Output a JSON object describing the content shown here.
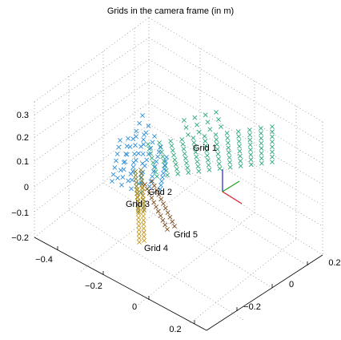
{
  "chart_data": {
    "type": "scatter",
    "title": "Grids in the camera frame (in m)",
    "projection": "3d",
    "grid": true,
    "axes": {
      "x": {
        "ticks": [
          "−0.4",
          "−0.2",
          "0",
          "0.2"
        ],
        "values": [
          -0.4,
          -0.2,
          0,
          0.2
        ]
      },
      "y": {
        "ticks": [
          "−0.2",
          "0",
          "0.2"
        ],
        "values": [
          -0.2,
          0,
          0.2
        ]
      },
      "z": {
        "ticks": [
          "−0.2",
          "−0.1",
          "0",
          "0.1",
          "0.2",
          "0.3"
        ],
        "values": [
          -0.2,
          -0.1,
          0,
          0.1,
          0.2,
          0.3
        ]
      }
    },
    "series": [
      {
        "name": "Grid 1",
        "color": "#2ca87a",
        "marker": "x"
      },
      {
        "name": "Grid 2",
        "color": "#2f8fd6",
        "marker": "x"
      },
      {
        "name": "Grid 3",
        "color": "#7a7a30",
        "marker": "x"
      },
      {
        "name": "Grid 4",
        "color": "#c79a1e",
        "marker": "x"
      },
      {
        "name": "Grid 5",
        "color": "#7a4a1c",
        "marker": "x"
      }
    ],
    "camera_frame_colors": {
      "x": "#e0202a",
      "y": "#20a020",
      "z": "#2020d0"
    }
  }
}
